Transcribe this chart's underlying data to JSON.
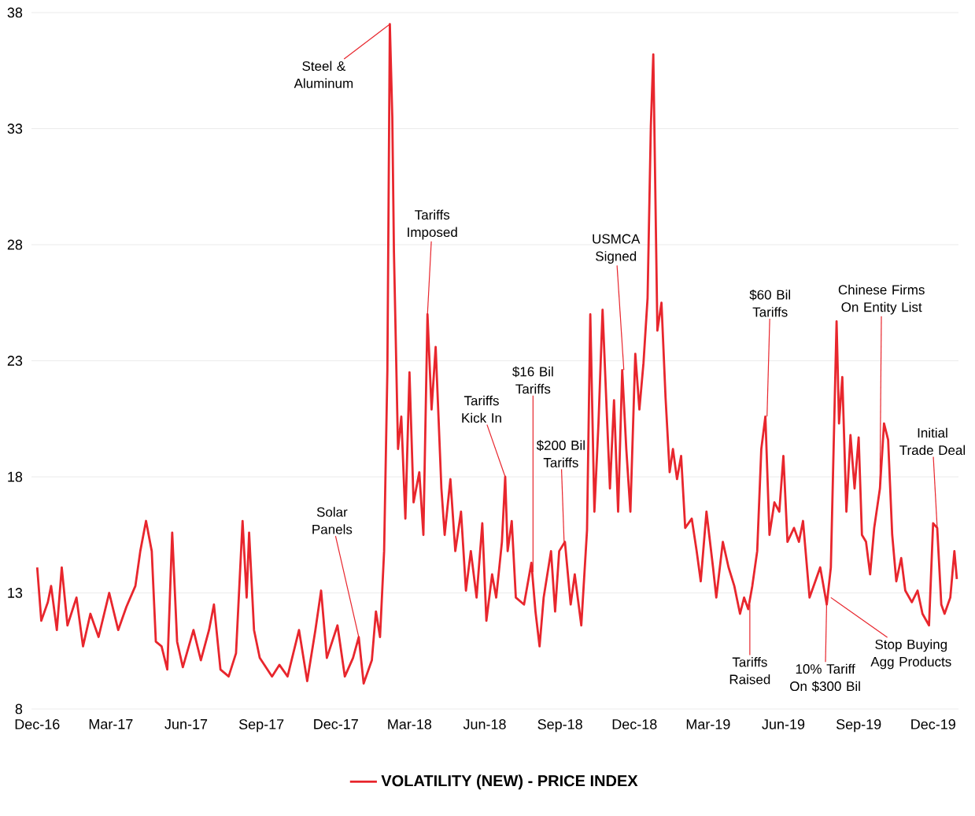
{
  "chart_data": {
    "type": "line",
    "x": [
      "2016-12-01",
      "2016-12-06",
      "2016-12-14",
      "2016-12-18",
      "2016-12-25",
      "2016-12-31",
      "2017-01-07",
      "2017-01-18",
      "2017-01-26",
      "2017-02-04",
      "2017-02-14",
      "2017-02-27",
      "2017-03-10",
      "2017-03-20",
      "2017-03-31",
      "2017-04-06",
      "2017-04-13",
      "2017-04-20",
      "2017-04-25",
      "2017-05-02",
      "2017-05-09",
      "2017-05-15",
      "2017-05-21",
      "2017-05-28",
      "2017-06-10",
      "2017-06-19",
      "2017-06-29",
      "2017-07-05",
      "2017-07-13",
      "2017-07-23",
      "2017-08-01",
      "2017-08-09",
      "2017-08-14",
      "2017-08-17",
      "2017-08-23",
      "2017-08-30",
      "2017-09-14",
      "2017-09-23",
      "2017-10-03",
      "2017-10-17",
      "2017-10-27",
      "2017-11-06",
      "2017-11-13",
      "2017-11-20",
      "2017-12-03",
      "2017-12-12",
      "2017-12-22",
      "2017-12-29",
      "2018-01-04",
      "2018-01-14",
      "2018-01-19",
      "2018-01-24",
      "2018-01-29",
      "2018-02-02",
      "2018-02-05",
      "2018-02-08",
      "2018-02-10",
      "2018-02-15",
      "2018-02-19",
      "2018-02-24",
      "2018-03-01",
      "2018-03-06",
      "2018-03-13",
      "2018-03-18",
      "2018-03-23",
      "2018-03-28",
      "2018-04-02",
      "2018-04-09",
      "2018-04-13",
      "2018-04-20",
      "2018-04-26",
      "2018-05-03",
      "2018-05-09",
      "2018-05-15",
      "2018-05-22",
      "2018-05-29",
      "2018-06-03",
      "2018-06-10",
      "2018-06-15",
      "2018-06-22",
      "2018-06-26",
      "2018-06-29",
      "2018-07-04",
      "2018-07-09",
      "2018-07-19",
      "2018-07-28",
      "2018-08-02",
      "2018-08-07",
      "2018-08-12",
      "2018-08-21",
      "2018-08-26",
      "2018-08-31",
      "2018-09-07",
      "2018-09-14",
      "2018-09-19",
      "2018-09-27",
      "2018-10-04",
      "2018-10-08",
      "2018-10-13",
      "2018-10-18",
      "2018-10-23",
      "2018-10-28",
      "2018-11-01",
      "2018-11-06",
      "2018-11-11",
      "2018-11-16",
      "2018-11-21",
      "2018-11-26",
      "2018-12-02",
      "2018-12-07",
      "2018-12-12",
      "2018-12-17",
      "2018-12-21",
      "2018-12-24",
      "2018-12-29",
      "2019-01-03",
      "2019-01-08",
      "2019-01-13",
      "2019-01-17",
      "2019-01-22",
      "2019-01-27",
      "2019-02-01",
      "2019-02-09",
      "2019-02-15",
      "2019-02-20",
      "2019-02-27",
      "2019-03-07",
      "2019-03-11",
      "2019-03-19",
      "2019-03-26",
      "2019-04-02",
      "2019-04-09",
      "2019-04-14",
      "2019-04-19",
      "2019-04-24",
      "2019-04-30",
      "2019-05-05",
      "2019-05-10",
      "2019-05-15",
      "2019-05-21",
      "2019-05-27",
      "2019-06-01",
      "2019-06-06",
      "2019-06-14",
      "2019-06-20",
      "2019-06-25",
      "2019-07-03",
      "2019-07-10",
      "2019-07-16",
      "2019-07-24",
      "2019-07-29",
      "2019-08-05",
      "2019-08-08",
      "2019-08-12",
      "2019-08-17",
      "2019-08-22",
      "2019-08-27",
      "2019-09-01",
      "2019-09-05",
      "2019-09-10",
      "2019-09-15",
      "2019-09-20",
      "2019-09-27",
      "2019-10-02",
      "2019-10-07",
      "2019-10-12",
      "2019-10-17",
      "2019-10-23",
      "2019-10-28",
      "2019-11-05",
      "2019-11-12",
      "2019-11-18",
      "2019-11-26",
      "2019-12-01",
      "2019-12-06",
      "2019-12-11",
      "2019-12-15",
      "2019-12-22",
      "2019-12-27",
      "2019-12-30"
    ],
    "series": [
      {
        "name": "VOLATILITY (NEW) - PRICE INDEX",
        "color": "#e8262d",
        "values": [
          14.1,
          11.8,
          12.6,
          13.3,
          11.4,
          14.1,
          11.6,
          12.8,
          10.7,
          12.1,
          11.1,
          13.0,
          11.4,
          12.4,
          13.3,
          14.8,
          16.1,
          14.8,
          10.9,
          10.7,
          9.7,
          15.6,
          10.9,
          9.8,
          11.4,
          10.1,
          11.4,
          12.5,
          9.7,
          9.4,
          10.4,
          16.1,
          12.8,
          15.6,
          11.4,
          10.2,
          9.4,
          9.9,
          9.4,
          11.4,
          9.2,
          11.4,
          13.1,
          10.2,
          11.6,
          9.4,
          10.2,
          11.1,
          9.1,
          10.1,
          12.2,
          11.1,
          14.8,
          22.6,
          37.5,
          33.5,
          27.7,
          19.2,
          20.6,
          16.2,
          22.5,
          16.9,
          18.2,
          15.5,
          25.0,
          20.9,
          23.6,
          17.5,
          15.5,
          17.9,
          14.8,
          16.5,
          13.1,
          14.8,
          12.8,
          16.0,
          11.8,
          13.8,
          12.8,
          15.2,
          18.0,
          14.8,
          16.1,
          12.8,
          12.5,
          14.3,
          12.2,
          10.7,
          12.8,
          14.8,
          12.2,
          14.8,
          15.2,
          12.5,
          13.8,
          11.6,
          15.7,
          25.0,
          16.5,
          20.3,
          25.2,
          20.9,
          17.5,
          21.3,
          16.5,
          22.6,
          19.2,
          16.5,
          23.3,
          20.9,
          22.9,
          25.7,
          33.1,
          36.2,
          24.3,
          25.5,
          21.4,
          18.2,
          19.2,
          17.9,
          18.9,
          15.8,
          16.2,
          14.8,
          13.5,
          16.5,
          14.1,
          12.8,
          15.2,
          14.1,
          13.3,
          12.1,
          12.8,
          12.3,
          13.3,
          14.8,
          19.2,
          20.6,
          15.5,
          16.9,
          16.5,
          18.9,
          15.2,
          15.8,
          15.2,
          16.1,
          12.8,
          13.5,
          14.1,
          12.5,
          14.1,
          24.7,
          20.3,
          22.3,
          16.5,
          19.8,
          17.5,
          19.7,
          15.5,
          15.2,
          13.8,
          15.8,
          17.5,
          20.3,
          19.6,
          15.5,
          13.5,
          14.5,
          13.1,
          12.6,
          13.1,
          12.1,
          11.6,
          16.0,
          15.8,
          12.5,
          12.1,
          12.8,
          14.8,
          13.6
        ]
      }
    ],
    "xlim": [
      "2016-11-24",
      "2020-01-01"
    ],
    "xticks": [
      {
        "value": "2016-12-01",
        "label": "Dec-16"
      },
      {
        "value": "2017-03-01",
        "label": "Mar-17"
      },
      {
        "value": "2017-06-01",
        "label": "Jun-17"
      },
      {
        "value": "2017-09-01",
        "label": "Sep-17"
      },
      {
        "value": "2017-12-01",
        "label": "Dec-17"
      },
      {
        "value": "2018-03-01",
        "label": "Mar-18"
      },
      {
        "value": "2018-06-01",
        "label": "Jun-18"
      },
      {
        "value": "2018-09-01",
        "label": "Sep-18"
      },
      {
        "value": "2018-12-01",
        "label": "Dec-18"
      },
      {
        "value": "2019-03-01",
        "label": "Mar-19"
      },
      {
        "value": "2019-06-01",
        "label": "Jun-19"
      },
      {
        "value": "2019-09-01",
        "label": "Sep-19"
      },
      {
        "value": "2019-12-01",
        "label": "Dec-19"
      }
    ],
    "ylim": [
      8,
      38
    ],
    "yticks": [
      8,
      13,
      18,
      23,
      28,
      33,
      38
    ],
    "grid": "y",
    "legend": "bottom",
    "marker": "none",
    "line_style": "solid",
    "annotations": [
      {
        "text": "Solar Panels",
        "x": "2017-12-29",
        "y": 11.1
      },
      {
        "text": "Steel & Aluminum",
        "x": "2018-02-05",
        "y": 37.5
      },
      {
        "text": "Tariffs Imposed",
        "x": "2018-03-23",
        "y": 25.0
      },
      {
        "text": "Tariffs Kick In",
        "x": "2018-06-26",
        "y": 18.0
      },
      {
        "text": "$16 Bil Tariffs",
        "x": "2018-07-30",
        "y": 13.9
      },
      {
        "text": "$200 Bil Tariffs",
        "x": "2018-09-06",
        "y": 15.2
      },
      {
        "text": "USMCA Signed",
        "x": "2018-11-18",
        "y": 22.6
      },
      {
        "text": "Tariffs Raised",
        "x": "2019-04-21",
        "y": 12.5
      },
      {
        "text": "$60 Bil Tariffs",
        "x": "2019-05-12",
        "y": 20.6
      },
      {
        "text": "10% Tariff On $300 Bil",
        "x": "2019-07-24",
        "y": 12.8
      },
      {
        "text": "Stop Buying Agg Products",
        "x": "2019-07-29",
        "y": 12.8
      },
      {
        "text": "Chinese Firms On Entity List",
        "x": "2019-09-27",
        "y": 17.5
      },
      {
        "text": "Initial Trade Deal",
        "x": "2019-12-06",
        "y": 15.8
      }
    ]
  }
}
